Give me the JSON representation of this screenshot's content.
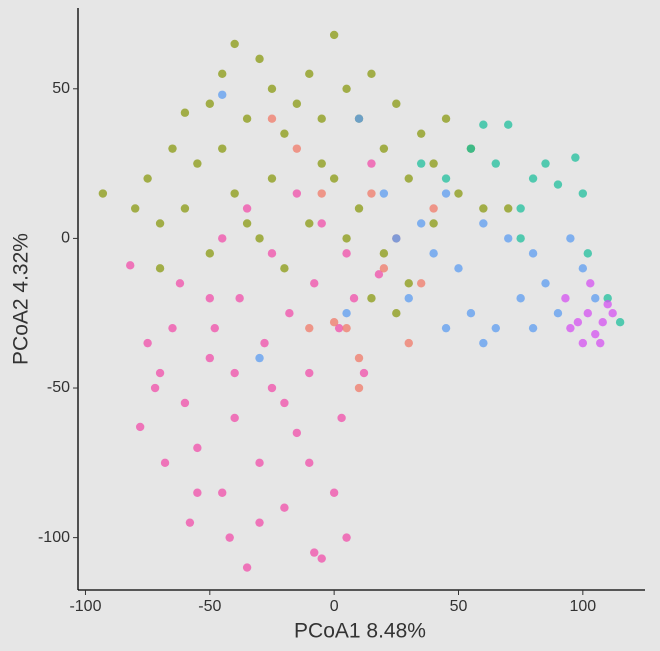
{
  "chart_data": {
    "type": "scatter",
    "x_label": "PCoA1  8.48%",
    "y_label": "PCoA2  4.32%",
    "xlim": [
      -103,
      125
    ],
    "ylim": [
      -117.5,
      77
    ],
    "xticks": [
      -100,
      -50,
      0,
      50,
      100
    ],
    "yticks": [
      -100,
      -50,
      0,
      50
    ],
    "series": [
      {
        "color": "#8a9a12",
        "x": [
          -93,
          -80,
          -75,
          -70,
          -65,
          -60,
          -55,
          -50,
          -45,
          -40,
          -35,
          -30,
          -25,
          -20,
          -15,
          -10,
          -5,
          0,
          5,
          10,
          15,
          20,
          25,
          30,
          35,
          40,
          45,
          50,
          55,
          -60,
          -50,
          -40,
          -30,
          -20,
          -10,
          0,
          10,
          20,
          30,
          -70,
          -45,
          -25,
          -5,
          5,
          15,
          40,
          60,
          70,
          25,
          -35
        ],
        "values": [
          15,
          10,
          20,
          5,
          30,
          42,
          25,
          45,
          55,
          65,
          40,
          60,
          50,
          35,
          45,
          55,
          40,
          68,
          50,
          40,
          55,
          30,
          45,
          20,
          35,
          25,
          40,
          15,
          30,
          10,
          -5,
          15,
          0,
          -10,
          5,
          20,
          10,
          -5,
          -15,
          -10,
          30,
          20,
          25,
          0,
          -20,
          5,
          10,
          10,
          -25,
          5
        ]
      },
      {
        "color": "#f04eaa",
        "x": [
          -82,
          -75,
          -70,
          -65,
          -60,
          -55,
          -50,
          -45,
          -40,
          -35,
          -30,
          -25,
          -20,
          -15,
          -10,
          -5,
          0,
          5,
          -78,
          -68,
          -58,
          -48,
          -38,
          -28,
          -18,
          -8,
          2,
          8,
          12,
          -45,
          -35,
          -25,
          -15,
          -5,
          5,
          15,
          -50,
          -40,
          -30,
          -20,
          -10,
          3,
          -62,
          -72,
          -42,
          18,
          -8,
          -55
        ],
        "values": [
          -9,
          -35,
          -45,
          -30,
          -55,
          -70,
          -40,
          -85,
          -60,
          -110,
          -75,
          -50,
          -90,
          -65,
          -45,
          -107,
          -85,
          -100,
          -63,
          -75,
          -95,
          -30,
          -20,
          -35,
          -25,
          -15,
          -30,
          -20,
          -45,
          0,
          10,
          -5,
          15,
          5,
          -5,
          25,
          -20,
          -45,
          -95,
          -55,
          -75,
          -60,
          -15,
          -50,
          -100,
          -12,
          -105,
          -85
        ]
      },
      {
        "color": "#f07a68",
        "x": [
          -25,
          -15,
          -5,
          5,
          10,
          15,
          20,
          25,
          30,
          35,
          10,
          -10,
          40,
          0
        ],
        "values": [
          40,
          30,
          15,
          -30,
          -50,
          15,
          -10,
          0,
          -35,
          -15,
          -40,
          -30,
          10,
          -28
        ]
      },
      {
        "color": "#5c9cf0",
        "x": [
          -45,
          10,
          20,
          25,
          35,
          40,
          45,
          50,
          55,
          60,
          65,
          70,
          75,
          80,
          85,
          90,
          95,
          100,
          105,
          -30,
          5,
          30,
          45,
          60,
          80
        ],
        "values": [
          48,
          40,
          15,
          0,
          5,
          -5,
          15,
          -10,
          -25,
          5,
          -30,
          0,
          -20,
          -5,
          -15,
          -25,
          0,
          -10,
          -20,
          -40,
          -25,
          -20,
          -30,
          -35,
          -30
        ]
      },
      {
        "color": "#1fbf9c",
        "x": [
          35,
          45,
          55,
          60,
          65,
          70,
          75,
          80,
          85,
          90,
          97,
          100,
          102,
          110,
          115,
          75
        ],
        "values": [
          25,
          20,
          30,
          38,
          25,
          38,
          10,
          20,
          25,
          18,
          27,
          15,
          -5,
          -20,
          -28,
          0
        ]
      },
      {
        "color": "#d452f0",
        "x": [
          95,
          100,
          102,
          105,
          108,
          110,
          112,
          98,
          93,
          107,
          103
        ],
        "values": [
          -30,
          -35,
          -25,
          -32,
          -28,
          -22,
          -25,
          -28,
          -20,
          -35,
          -15
        ]
      }
    ]
  }
}
